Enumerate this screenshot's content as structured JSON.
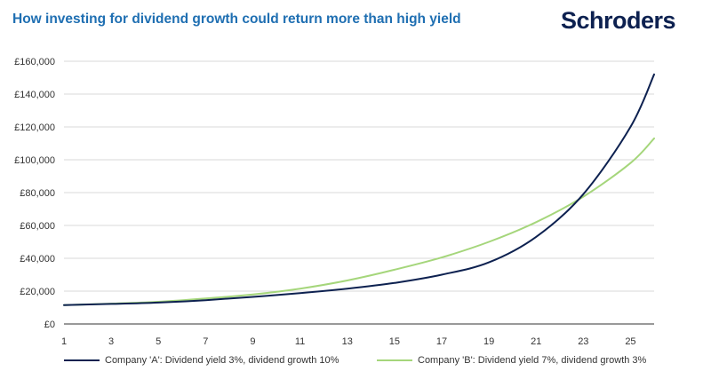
{
  "title": "How investing for dividend growth could return more than high yield",
  "brand": {
    "name": "Schroders",
    "color": "#0d2150"
  },
  "colors": {
    "title": "#1f6fb2",
    "grid": "#d9d9d9",
    "axis": "#333333"
  },
  "chart_data": {
    "type": "line",
    "title": "How investing for dividend growth could return more than high yield",
    "xlabel": "",
    "ylabel": "",
    "xlim": [
      1,
      26
    ],
    "ylim": [
      0,
      160000
    ],
    "x_ticks": [
      1,
      3,
      5,
      7,
      9,
      11,
      13,
      15,
      17,
      19,
      21,
      23,
      25
    ],
    "y_ticks": [
      0,
      20000,
      40000,
      60000,
      80000,
      100000,
      120000,
      140000,
      160000
    ],
    "y_tick_labels": [
      "£0",
      "£20,000",
      "£40,000",
      "£60,000",
      "£80,000",
      "£100,000",
      "£120,000",
      "£140,000",
      "£160,000"
    ],
    "grid": true,
    "legend_position": "bottom",
    "x": [
      1,
      3,
      5,
      7,
      9,
      11,
      13,
      15,
      17,
      19,
      21,
      23,
      25,
      26
    ],
    "series": [
      {
        "name": "Company 'A': Dividend yield 3%, dividend growth 10%",
        "color": "#0d2150",
        "values": [
          11500,
          12200,
          13000,
          14500,
          16500,
          18800,
          21500,
          25000,
          30000,
          37500,
          53000,
          79000,
          120000,
          152000
        ]
      },
      {
        "name": "Company 'B': Dividend yield 7%, dividend growth 3%",
        "color": "#a5d67b",
        "values": [
          11500,
          12400,
          13500,
          15500,
          18000,
          21500,
          26500,
          33000,
          40500,
          50000,
          62000,
          77500,
          98000,
          113000
        ]
      }
    ]
  }
}
